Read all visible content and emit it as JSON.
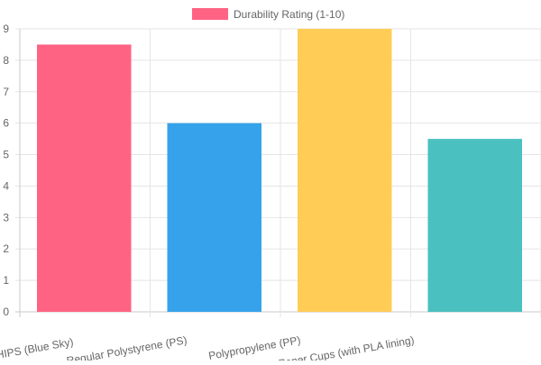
{
  "chart_data": {
    "type": "bar",
    "categories": [
      "HIPS (Blue Sky)",
      "Regular Polystyrene (PS)",
      "Polypropylene (PP)",
      "Paper Cups (with PLA lining)"
    ],
    "series": [
      {
        "name": "Durability Rating (1-10)",
        "values": [
          8.5,
          6,
          9,
          5.5
        ]
      }
    ],
    "colors": [
      "#ff6384",
      "#36a2eb",
      "#ffcd56",
      "#4bc0c0"
    ],
    "legend_color": "#ff6384",
    "ylim": [
      0,
      9
    ],
    "yticks": [
      0,
      1,
      2,
      3,
      4,
      5,
      6,
      7,
      8,
      9
    ],
    "grid": true,
    "legend_position": "top"
  }
}
